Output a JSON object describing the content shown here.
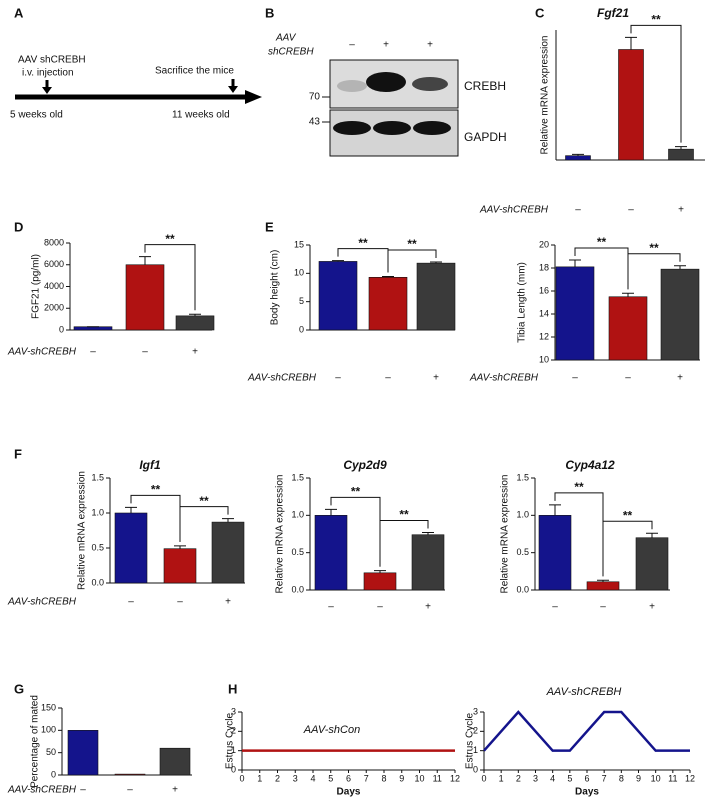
{
  "figure": {
    "panel_labels": [
      "A",
      "B",
      "C",
      "D",
      "E",
      "F",
      "G",
      "H"
    ]
  },
  "timeline": {
    "injection_label": [
      "AAV shCREBH",
      "i.v. injection"
    ],
    "sacrifice_label": "Sacrifice the mice",
    "start": "5 weeks old",
    "end": "11 weeks old"
  },
  "blot": {
    "treatment_label": [
      "AAV",
      "shCREBH"
    ],
    "lanes": [
      "–",
      "+",
      "+"
    ],
    "markers": [
      70,
      43
    ],
    "bands": [
      "CREBH",
      "GAPDH"
    ]
  },
  "chart_data": [
    {
      "type": "bar",
      "title": "Fgf21",
      "y_label": "Relative mRNA expression",
      "row_label": "AAV-shCREBH",
      "categories": [
        "–",
        "–",
        "+"
      ],
      "values": [
        1,
        25.5,
        2.5
      ],
      "errors": [
        0.3,
        2.8,
        0.6
      ],
      "colors": [
        "#14148c",
        "#b01212",
        "#3a3a3a"
      ],
      "ylim": [
        0,
        30
      ],
      "significance": [
        {
          "label": "**",
          "bars": [
            1,
            2
          ]
        }
      ]
    },
    {
      "type": "bar",
      "y_label": "FGF21 (pg/ml)",
      "row_label": "AAV-shCREBH",
      "categories": [
        "–",
        "–",
        "+"
      ],
      "values": [
        300,
        6000,
        1300
      ],
      "errors": [
        0,
        750,
        150
      ],
      "colors": [
        "#14148c",
        "#b01212",
        "#3a3a3a"
      ],
      "ylim": [
        0,
        8000
      ],
      "yticks": [
        0,
        2000,
        4000,
        6000,
        8000
      ],
      "significance": [
        {
          "label": "**",
          "bars": [
            1,
            2
          ]
        }
      ]
    },
    {
      "type": "bar",
      "y_label": "Body height (cm)",
      "row_label": "AAV-shCREBH",
      "categories": [
        "–",
        "–",
        "+"
      ],
      "values": [
        12.1,
        9.3,
        11.8
      ],
      "errors": [
        0.15,
        0.15,
        0.2
      ],
      "colors": [
        "#14148c",
        "#b01212",
        "#3a3a3a"
      ],
      "ylim": [
        0,
        15
      ],
      "yticks": [
        0,
        5,
        10,
        15
      ],
      "significance": [
        {
          "label": "**",
          "bars": [
            0,
            1
          ]
        },
        {
          "label": "**",
          "bars": [
            1,
            2
          ]
        }
      ]
    },
    {
      "type": "bar",
      "y_label": "Tibia Length (mm)",
      "row_label": "AAV-shCREBH",
      "categories": [
        "–",
        "–",
        "+"
      ],
      "values": [
        18.1,
        15.5,
        17.9
      ],
      "errors": [
        0.6,
        0.3,
        0.3
      ],
      "colors": [
        "#14148c",
        "#b01212",
        "#3a3a3a"
      ],
      "ylim": [
        10,
        20
      ],
      "yticks": [
        10,
        12,
        14,
        16,
        18,
        20
      ],
      "significance": [
        {
          "label": "**",
          "bars": [
            0,
            1
          ]
        },
        {
          "label": "**",
          "bars": [
            1,
            2
          ]
        }
      ]
    },
    {
      "type": "bar",
      "title": "Igf1",
      "y_label": "Relative mRNA expression",
      "row_label": "AAV-shCREBH",
      "categories": [
        "–",
        "–",
        "+"
      ],
      "values": [
        1.0,
        0.49,
        0.87
      ],
      "errors": [
        0.08,
        0.04,
        0.05
      ],
      "colors": [
        "#14148c",
        "#b01212",
        "#3a3a3a"
      ],
      "ylim": [
        0,
        1.5
      ],
      "yticks": [
        {
          "value": 0,
          "label": "0.0"
        },
        {
          "value": 0.5,
          "label": "0.5"
        },
        {
          "value": 1,
          "label": "1.0"
        },
        {
          "value": 1.5,
          "label": "1.5"
        }
      ],
      "significance": [
        {
          "label": "**",
          "bars": [
            0,
            1
          ]
        },
        {
          "label": "**",
          "bars": [
            1,
            2
          ]
        }
      ]
    },
    {
      "type": "bar",
      "title": "Cyp2d9",
      "y_label": "Relative mRNA expression",
      "categories": [
        "–",
        "–",
        "+"
      ],
      "values": [
        1.0,
        0.23,
        0.74
      ],
      "errors": [
        0.08,
        0.03,
        0.03
      ],
      "colors": [
        "#14148c",
        "#b01212",
        "#3a3a3a"
      ],
      "ylim": [
        0,
        1.5
      ],
      "yticks": [
        {
          "value": 0,
          "label": "0.0"
        },
        {
          "value": 0.5,
          "label": "0.5"
        },
        {
          "value": 1,
          "label": "1.0"
        },
        {
          "value": 1.5,
          "label": "1.5"
        }
      ],
      "significance": [
        {
          "label": "**",
          "bars": [
            0,
            1
          ]
        },
        {
          "label": "**",
          "bars": [
            1,
            2
          ]
        }
      ]
    },
    {
      "type": "bar",
      "title": "Cyp4a12",
      "y_label": "Relative mRNA expression",
      "categories": [
        "–",
        "–",
        "+"
      ],
      "values": [
        1.0,
        0.11,
        0.7
      ],
      "errors": [
        0.14,
        0.02,
        0.06
      ],
      "colors": [
        "#14148c",
        "#b01212",
        "#3a3a3a"
      ],
      "ylim": [
        0,
        1.5
      ],
      "yticks": [
        {
          "value": 0,
          "label": "0.0"
        },
        {
          "value": 0.5,
          "label": "0.5"
        },
        {
          "value": 1,
          "label": "1.0"
        },
        {
          "value": 1.5,
          "label": "1.5"
        }
      ],
      "significance": [
        {
          "label": "**",
          "bars": [
            0,
            1
          ]
        },
        {
          "label": "**",
          "bars": [
            1,
            2
          ]
        }
      ]
    },
    {
      "type": "bar",
      "y_label": "Percentage of mated",
      "row_label": "AAV-shCREBH",
      "categories": [
        "–",
        "–",
        "+"
      ],
      "values": [
        100,
        2,
        60
      ],
      "colors": [
        "#14148c",
        "#b01212",
        "#3a3a3a"
      ],
      "ylim": [
        0,
        150
      ],
      "yticks": [
        0,
        50,
        100,
        150
      ]
    },
    {
      "type": "line",
      "title": "AAV-shCon",
      "y_label": "Estrus Cycle",
      "x_label": "Days",
      "x": [
        0,
        1,
        2,
        3,
        4,
        5,
        6,
        7,
        8,
        9,
        10,
        11,
        12
      ],
      "values": [
        1,
        1,
        1,
        1,
        1,
        1,
        1,
        1,
        1,
        1,
        1,
        1,
        1
      ],
      "color": "#b01212",
      "xlim": [
        0,
        12
      ],
      "xticks": [
        0,
        1,
        2,
        3,
        4,
        5,
        6,
        7,
        8,
        9,
        10,
        11,
        12
      ],
      "ylim": [
        0,
        3
      ],
      "yticks": [
        0,
        1,
        2,
        3
      ]
    },
    {
      "type": "line",
      "title": "AAV-shCREBH",
      "y_label": "Estrus Cycle",
      "x_label": "Days",
      "x": [
        0,
        2,
        4,
        5,
        7,
        8,
        10,
        12
      ],
      "values": [
        1,
        3,
        1,
        1,
        3,
        3,
        1,
        1
      ],
      "color": "#14148c",
      "xlim": [
        0,
        12
      ],
      "xticks": [
        0,
        1,
        2,
        3,
        4,
        5,
        6,
        7,
        8,
        9,
        10,
        11,
        12
      ],
      "ylim": [
        0,
        3
      ],
      "yticks": [
        0,
        1,
        2,
        3
      ]
    }
  ]
}
